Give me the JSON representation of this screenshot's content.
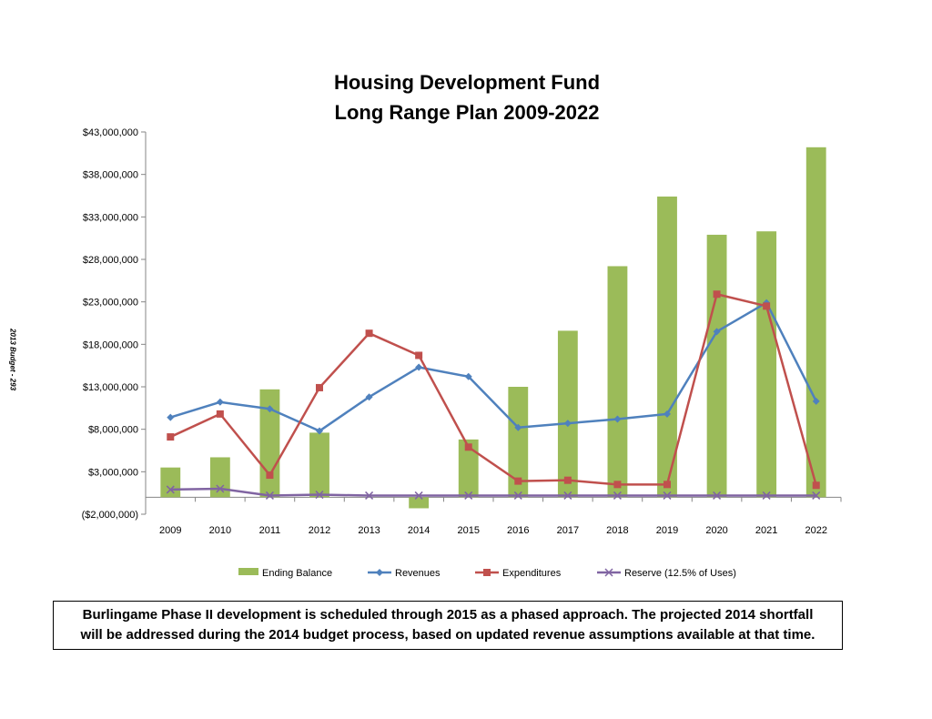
{
  "side_note": "2013 Budget - 293",
  "footnote": {
    "line1": "Burlingame Phase II development is scheduled through 2015 as a phased approach.  The projected 2014 shortfall",
    "line2": "will be addressed during the 2014 budget process, based on updated revenue assumptions available at that time."
  },
  "colors": {
    "ending_balance": "#9BBB59",
    "revenues": "#4F81BD",
    "expenditures": "#C0504D",
    "reserve": "#8064A2"
  },
  "chart_data": {
    "type": "bar",
    "title": [
      "Housing Development Fund",
      "Long Range Plan 2009-2022"
    ],
    "categories": [
      "2009",
      "2010",
      "2011",
      "2012",
      "2013",
      "2014",
      "2015",
      "2016",
      "2017",
      "2018",
      "2019",
      "2020",
      "2021",
      "2022"
    ],
    "ylim": [
      -2000000,
      43000000
    ],
    "yticks": [
      -2000000,
      3000000,
      8000000,
      13000000,
      18000000,
      23000000,
      28000000,
      33000000,
      38000000,
      43000000
    ],
    "ytick_labels": [
      "($2,000,000)",
      "$3,000,000",
      "$8,000,000",
      "$13,000,000",
      "$18,000,000",
      "$23,000,000",
      "$28,000,000",
      "$33,000,000",
      "$38,000,000",
      "$43,000,000"
    ],
    "grid": false,
    "legend_position": "bottom",
    "series": [
      {
        "name": "Ending Balance",
        "type": "bar",
        "color": "#9BBB59",
        "values": [
          3500000,
          4700000,
          12700000,
          7600000,
          0,
          -1300000,
          6800000,
          13000000,
          19600000,
          27200000,
          35400000,
          30900000,
          31300000,
          41200000
        ]
      },
      {
        "name": "Revenues",
        "type": "line",
        "marker": "diamond",
        "color": "#4F81BD",
        "values": [
          9400000,
          11200000,
          10400000,
          7800000,
          11800000,
          15300000,
          14200000,
          8200000,
          8700000,
          9200000,
          9800000,
          19500000,
          22900000,
          11300000
        ]
      },
      {
        "name": "Expenditures",
        "type": "line",
        "marker": "square",
        "color": "#C0504D",
        "values": [
          7100000,
          9800000,
          2600000,
          12900000,
          19300000,
          16700000,
          5900000,
          1900000,
          2000000,
          1500000,
          1500000,
          23900000,
          22500000,
          1400000
        ]
      },
      {
        "name": "Reserve (12.5% of Uses)",
        "type": "line",
        "marker": "x",
        "color": "#8064A2",
        "values": [
          900000,
          1000000,
          200000,
          300000,
          200000,
          200000,
          200000,
          200000,
          200000,
          200000,
          200000,
          200000,
          200000,
          200000
        ]
      }
    ]
  }
}
